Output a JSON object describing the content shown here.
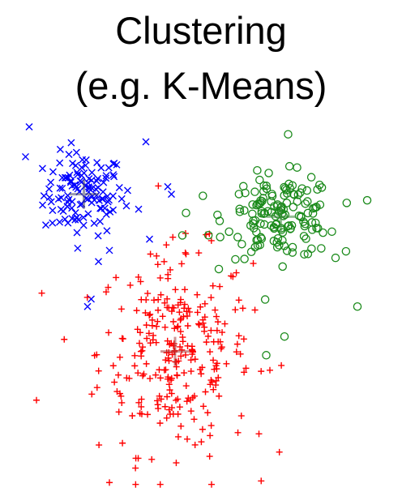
{
  "title_line1": "Clustering",
  "title_line2": "(e.g. K-Means)",
  "chart_data": {
    "type": "scatter",
    "title": "Clustering (e.g. K-Means)",
    "xlabel": "",
    "ylabel": "",
    "xlim": [
      0,
      10
    ],
    "ylim": [
      0,
      10
    ],
    "grid": false,
    "axes_visible": false,
    "series": [
      {
        "marker": "x",
        "color": "#0000ff",
        "center": [
          1.9,
          7.8
        ],
        "spread": [
          0.55,
          0.55
        ],
        "count": 120,
        "points": [
          [
            0.4,
            9.6
          ],
          [
            0.3,
            8.8
          ],
          [
            3.6,
            9.2
          ],
          [
            4.2,
            8.0
          ],
          [
            4.3,
            7.8
          ],
          [
            2.6,
            6.3
          ],
          [
            2.3,
            6.0
          ],
          [
            2.1,
            5.0
          ],
          [
            2.0,
            4.8
          ],
          [
            3.7,
            6.6
          ],
          [
            3.1,
            7.9
          ],
          [
            3.4,
            7.4
          ]
        ]
      },
      {
        "marker": "+",
        "color": "#ff0000",
        "center": [
          4.4,
          3.6
        ],
        "spread": [
          1.05,
          1.35
        ],
        "count": 280,
        "points": [
          [
            0.6,
            2.3
          ],
          [
            2.6,
            0.1
          ],
          [
            5.4,
            0.05
          ],
          [
            4.1,
            6.0
          ],
          [
            4.7,
            6.2
          ],
          [
            7.0,
            3.1
          ],
          [
            6.7,
            1.4
          ]
        ]
      },
      {
        "marker": "o",
        "color": "#1a8a1a",
        "center": [
          7.3,
          7.2
        ],
        "spread": [
          0.75,
          0.55
        ],
        "count": 150,
        "points": [
          [
            9.4,
            4.8
          ],
          [
            8.8,
            6.1
          ],
          [
            7.5,
            9.4
          ],
          [
            4.7,
            7.3
          ],
          [
            4.6,
            6.7
          ],
          [
            6.9,
            3.5
          ],
          [
            7.4,
            4.0
          ],
          [
            8.7,
            6.8
          ]
        ]
      }
    ],
    "centroids": [
      {
        "color": "#4a4a6a",
        "x": 1.9,
        "y": 7.8
      },
      {
        "color": "#a83a3a",
        "x": 4.4,
        "y": 3.6
      },
      {
        "color": "#3a8a3a",
        "x": 7.3,
        "y": 7.2
      }
    ]
  }
}
